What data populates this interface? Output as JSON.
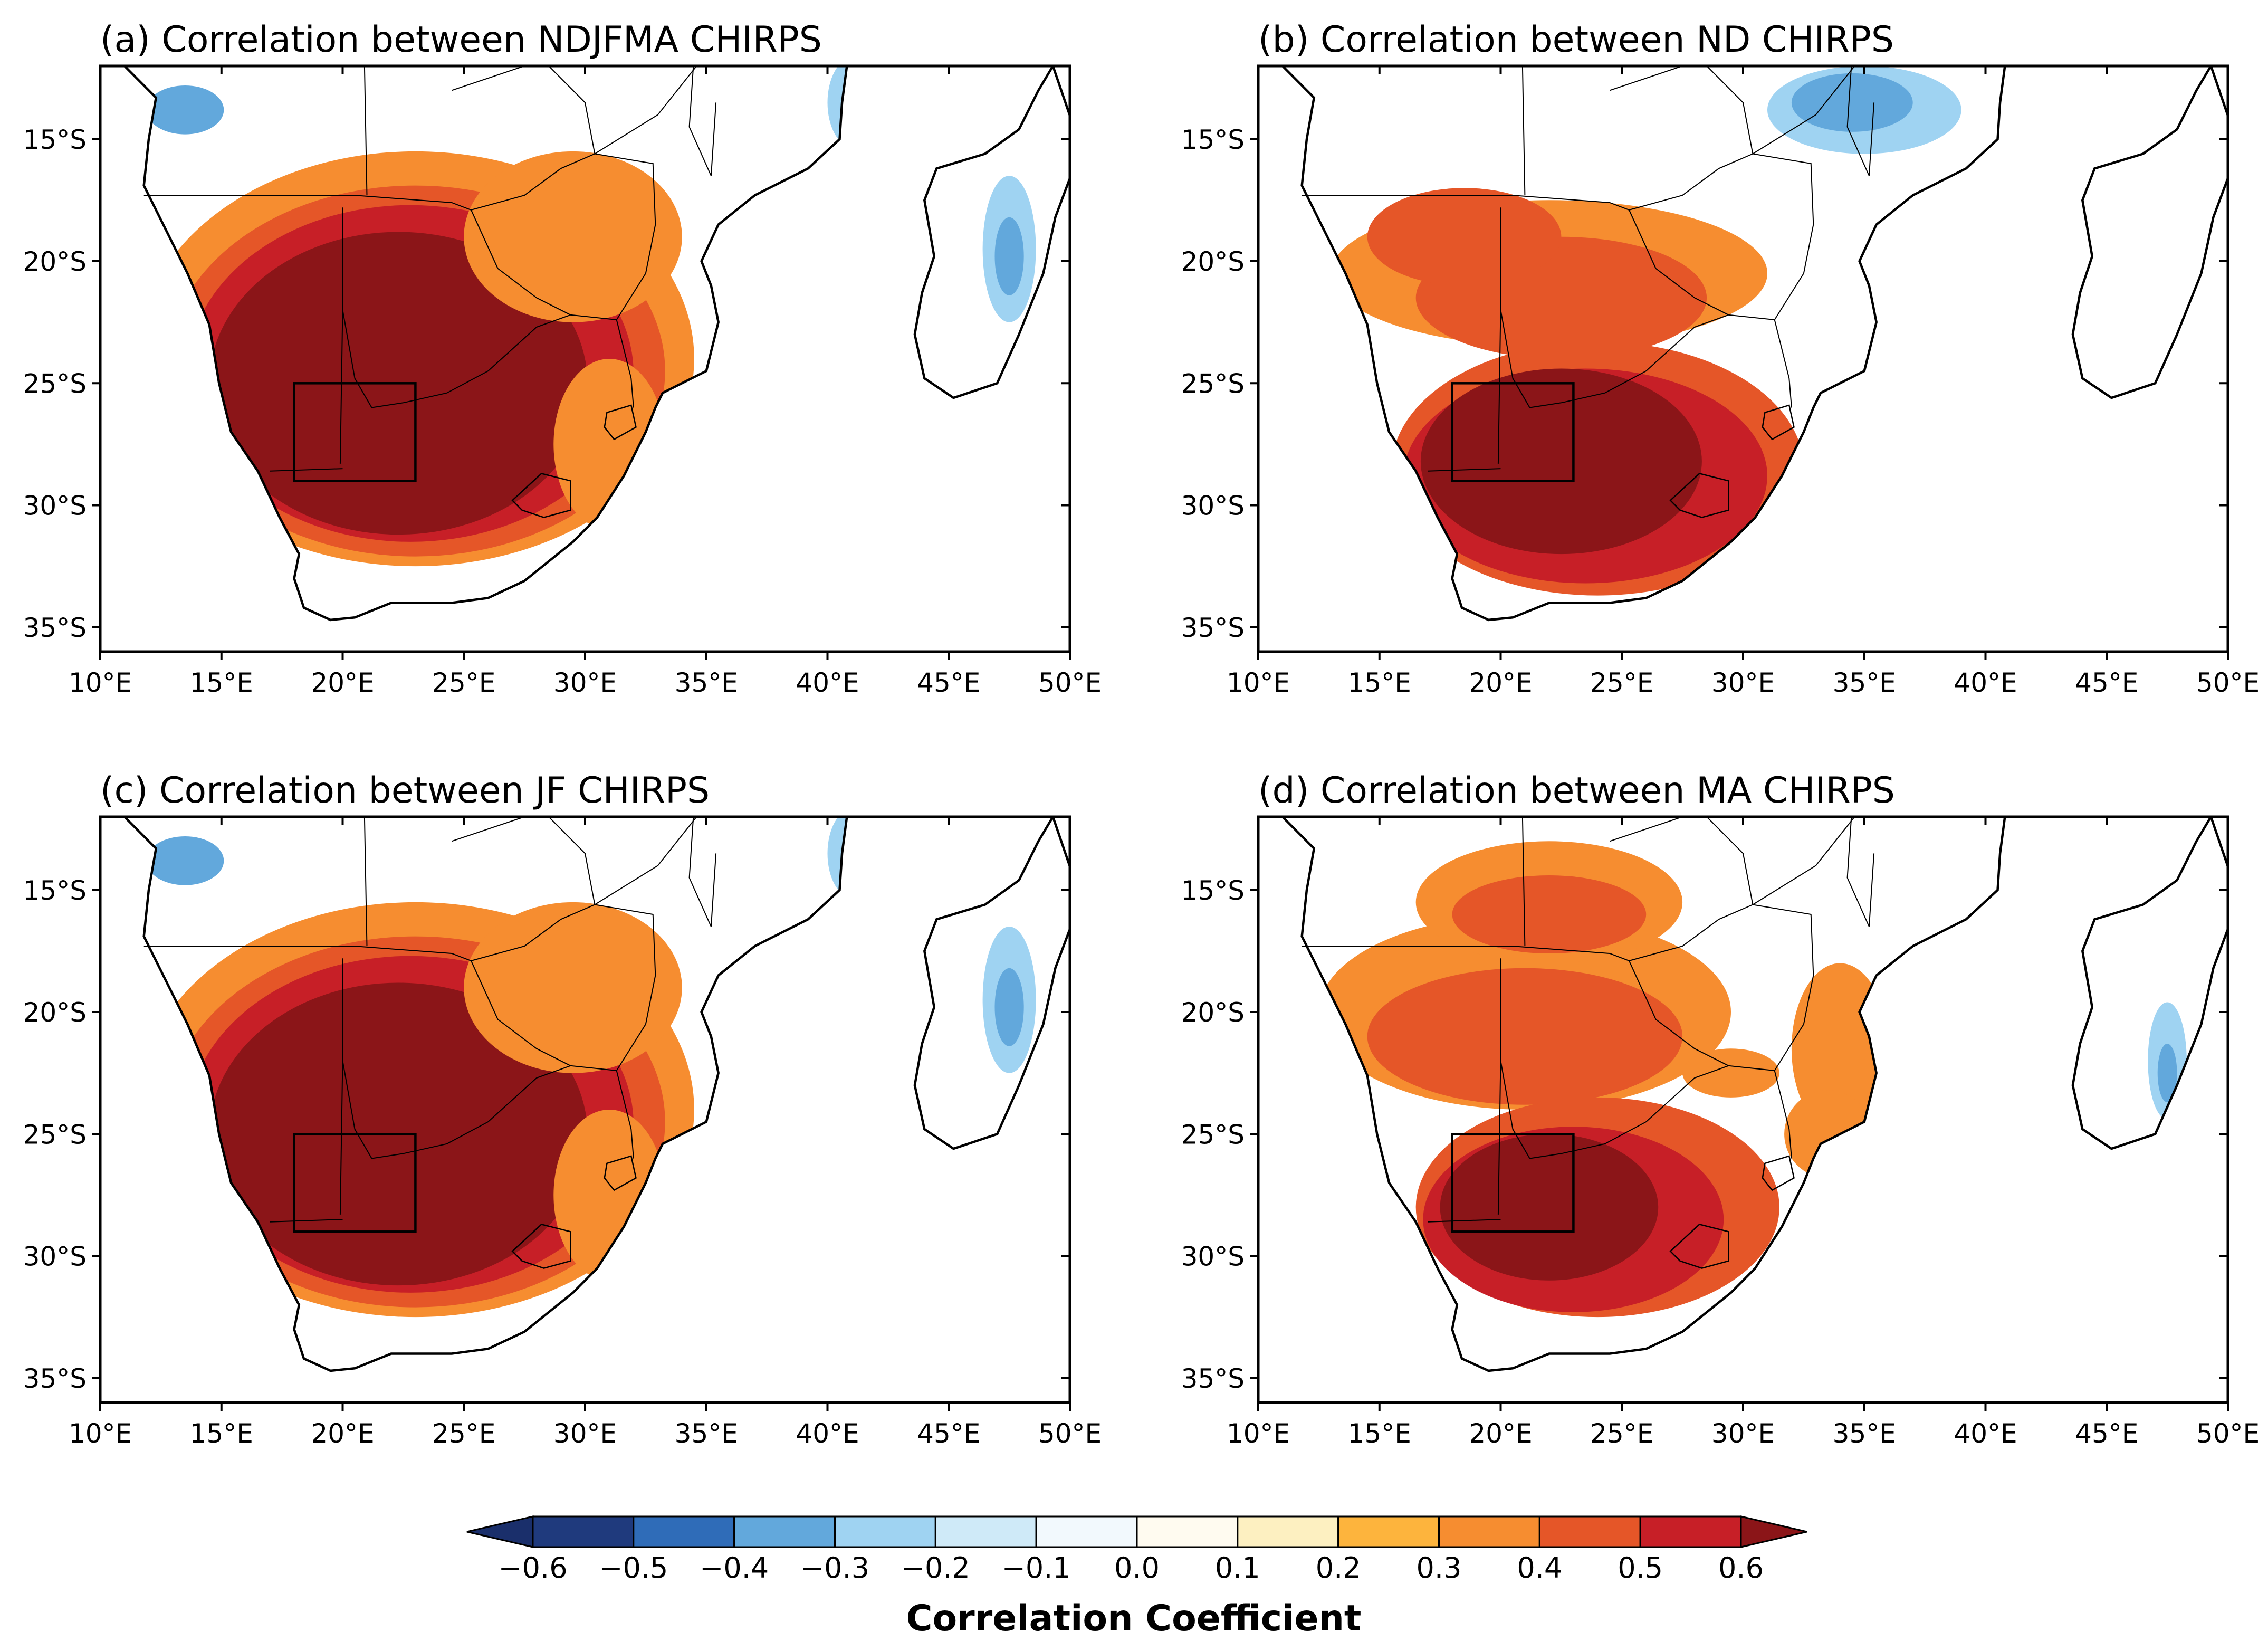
{
  "panels": [
    {
      "title": "(a) Correlation between NDJFMA CHIRPS",
      "pattern": "full"
    },
    {
      "title": "(b) Correlation between ND CHIRPS",
      "pattern": "south"
    },
    {
      "title": "(c) Correlation between JF CHIRPS",
      "pattern": "full"
    },
    {
      "title": "(d) Correlation between MA CHIRPS",
      "pattern": "patchy"
    }
  ],
  "lon_ticks": [
    "10°E",
    "15°E",
    "20°E",
    "25°E",
    "30°E",
    "35°E",
    "40°E",
    "45°E",
    "50°E"
  ],
  "lat_ticks": [
    "15°S",
    "20°S",
    "25°S",
    "30°S",
    "35°S"
  ],
  "lon_range": [
    10,
    50
  ],
  "lat_range": [
    -36,
    -12
  ],
  "lon_tick_values": [
    10,
    15,
    20,
    25,
    30,
    35,
    40,
    45,
    50
  ],
  "lat_tick_values": [
    -15,
    -20,
    -25,
    -30,
    -35
  ],
  "box_region": {
    "lon": [
      18,
      23
    ],
    "lat": [
      -29,
      -25
    ]
  },
  "colorbar": {
    "label": "Correlation Coefficient",
    "tick_labels": [
      "−0.6",
      "−0.5",
      "−0.4",
      "−0.3",
      "−0.2",
      "−0.1",
      "0.0",
      "0.1",
      "0.2",
      "0.3",
      "0.4",
      "0.5",
      "0.6"
    ],
    "colors": [
      "#1f3a7d",
      "#2f6cb8",
      "#62a8dc",
      "#9fd3f2",
      "#cfeaf8",
      "#f2f9fd",
      "#fffbf0",
      "#fdf0c1",
      "#fdb43d",
      "#f68d30",
      "#e55628",
      "#c71f27"
    ],
    "extend_low_color": "#1a2f6b",
    "extend_high_color": "#8b1518"
  }
}
